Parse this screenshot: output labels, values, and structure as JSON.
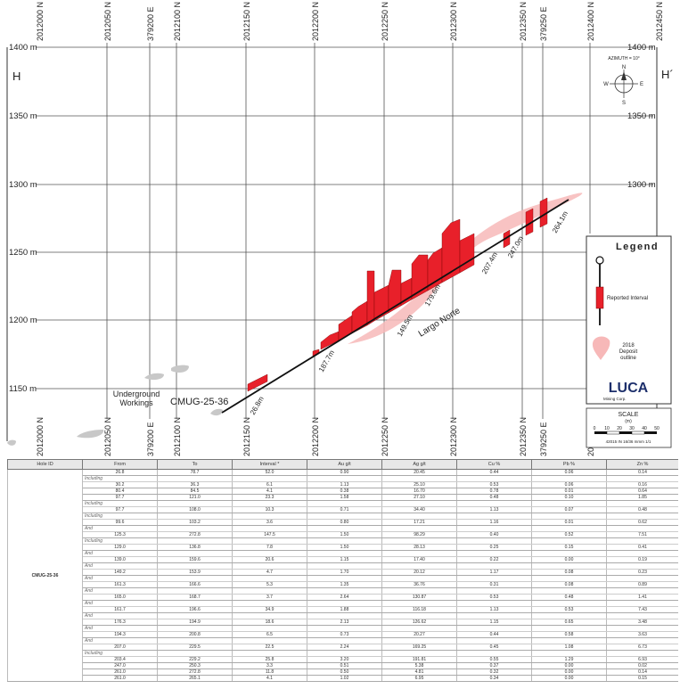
{
  "section": {
    "grid_top_labels": [
      "2012000 N",
      "2012050 N",
      "379200 E",
      "2012100 N",
      "2012150 N",
      "2012200 N",
      "2012250 N",
      "2012300 N",
      "2012350 N",
      "379250 E",
      "2012400 N",
      "2012450 N"
    ],
    "grid_bottom_labels": [
      "2012000 N",
      "2012050 N",
      "379200 E",
      "2012100 N",
      "2012150 N",
      "2012200 N",
      "2012250 N",
      "2012300 N",
      "2012350 N",
      "379250 E",
      "2012400 N"
    ],
    "elev_labels": [
      "1400 m",
      "1350 m",
      "1300 m",
      "1250 m",
      "1200 m",
      "1150 m"
    ],
    "corner_left": "H",
    "corner_right": "H´",
    "azimuth_label": "AZIMUTH = 10°",
    "compass": {
      "n": "N",
      "s": "S",
      "e": "E",
      "w": "W"
    },
    "hole_label": "CMUG-25-36",
    "workings_label_1": "Underground",
    "workings_label_2": "Workings",
    "deposit_label": "Largo Norte",
    "depths": [
      "26.8m",
      "187.7m",
      "149.5m",
      "179.6m",
      "207.4m",
      "247.0m",
      "264.1m"
    ]
  },
  "legend": {
    "title": "Legend",
    "reported_interval": "Reported Interval",
    "outline_1": "2018",
    "outline_2": "Deposit",
    "outline_3": "outline",
    "logo": "LUCA",
    "logo_sub": "Mining Corp."
  },
  "scale": {
    "title": "SCALE",
    "unit": "(m)",
    "ticks": [
      "0",
      "10",
      "20",
      "30",
      "40",
      "50"
    ],
    "note": "42015 IN 16/36 mmm 1/1"
  },
  "table": {
    "headers": [
      "Hole ID",
      "From",
      "To",
      "Interval *",
      "Au g/t",
      "Ag g/t",
      "Cu %",
      "Pb %",
      "Zn %"
    ],
    "hole_id": "CMUG-25-36",
    "rows": [
      {
        "sub": false,
        "cells": [
          "26.8",
          "78.7",
          "52.0",
          "0.90",
          "20.45",
          "0.44",
          "0.06",
          "0.14"
        ]
      },
      {
        "sub": true,
        "text": "Including"
      },
      {
        "sub": false,
        "cells": [
          "30.2",
          "36.3",
          "6.1",
          "1.13",
          "25.10",
          "0.53",
          "0.06",
          "0.16"
        ]
      },
      {
        "sub": false,
        "cells": [
          "80.4",
          "84.5",
          "4.1",
          "0.38",
          "16.70",
          "0.78",
          "0.01",
          "0.64"
        ]
      },
      {
        "sub": false,
        "cells": [
          "97.7",
          "121.0",
          "23.3",
          "1.58",
          "27.10",
          "0.48",
          "0.10",
          "1.85"
        ]
      },
      {
        "sub": true,
        "text": "Including"
      },
      {
        "sub": false,
        "cells": [
          "97.7",
          "108.0",
          "10.3",
          "0.71",
          "34.40",
          "1.13",
          "0.07",
          "0.48"
        ]
      },
      {
        "sub": true,
        "text": "Including"
      },
      {
        "sub": false,
        "cells": [
          "99.6",
          "103.2",
          "3.6",
          "0.80",
          "17.21",
          "1.16",
          "0.01",
          "0.62"
        ]
      },
      {
        "sub": true,
        "text": "And"
      },
      {
        "sub": false,
        "cells": [
          "125.3",
          "272.8",
          "147.5",
          "1.50",
          "98.29",
          "0.40",
          "0.52",
          "7.51"
        ]
      },
      {
        "sub": true,
        "text": "Including"
      },
      {
        "sub": false,
        "cells": [
          "129.0",
          "136.8",
          "7.8",
          "1.50",
          "28.13",
          "0.25",
          "0.15",
          "0.41"
        ]
      },
      {
        "sub": true,
        "text": "And"
      },
      {
        "sub": false,
        "cells": [
          "139.0",
          "159.6",
          "20.6",
          "1.15",
          "17.40",
          "0.22",
          "0.00",
          "0.19"
        ]
      },
      {
        "sub": true,
        "text": "And"
      },
      {
        "sub": false,
        "cells": [
          "149.2",
          "153.9",
          "4.7",
          "1.70",
          "20.12",
          "1.17",
          "0.08",
          "0.23"
        ]
      },
      {
        "sub": true,
        "text": "And"
      },
      {
        "sub": false,
        "cells": [
          "161.3",
          "166.6",
          "5.3",
          "1.35",
          "36.76",
          "0.31",
          "0.08",
          "0.89"
        ]
      },
      {
        "sub": true,
        "text": "And"
      },
      {
        "sub": false,
        "cells": [
          "165.0",
          "168.7",
          "3.7",
          "2.64",
          "130.87",
          "0.53",
          "0.48",
          "1.41"
        ]
      },
      {
        "sub": true,
        "text": "And"
      },
      {
        "sub": false,
        "cells": [
          "161.7",
          "196.6",
          "34.9",
          "1.88",
          "116.18",
          "1.13",
          "0.53",
          "7.43"
        ]
      },
      {
        "sub": true,
        "text": "And"
      },
      {
        "sub": false,
        "cells": [
          "176.3",
          "194.9",
          "18.6",
          "2.13",
          "126.62",
          "1.15",
          "0.65",
          "3.48"
        ]
      },
      {
        "sub": true,
        "text": "And"
      },
      {
        "sub": false,
        "cells": [
          "194.3",
          "200.8",
          "6.5",
          "0.73",
          "20.27",
          "0.44",
          "0.58",
          "3.63"
        ]
      },
      {
        "sub": true,
        "text": "And"
      },
      {
        "sub": false,
        "cells": [
          "207.0",
          "229.5",
          "22.5",
          "2.24",
          "169.25",
          "0.45",
          "1.08",
          "6.73"
        ]
      },
      {
        "sub": true,
        "text": "Including"
      },
      {
        "sub": false,
        "cells": [
          "203.4",
          "229.2",
          "25.8",
          "3.20",
          "191.81",
          "0.55",
          "1.29",
          "6.93"
        ]
      },
      {
        "sub": false,
        "cells": [
          "247.0",
          "250.3",
          "3.3",
          "0.51",
          "5.38",
          "0.37",
          "0.00",
          "0.02"
        ]
      },
      {
        "sub": false,
        "cells": [
          "261.0",
          "272.8",
          "11.8",
          "0.50",
          "4.81",
          "0.32",
          "0.00",
          "0.14"
        ]
      },
      {
        "sub": false,
        "cells": [
          "261.0",
          "265.1",
          "4.1",
          "1.02",
          "6.95",
          "0.34",
          "0.00",
          "0.15"
        ]
      }
    ]
  }
}
